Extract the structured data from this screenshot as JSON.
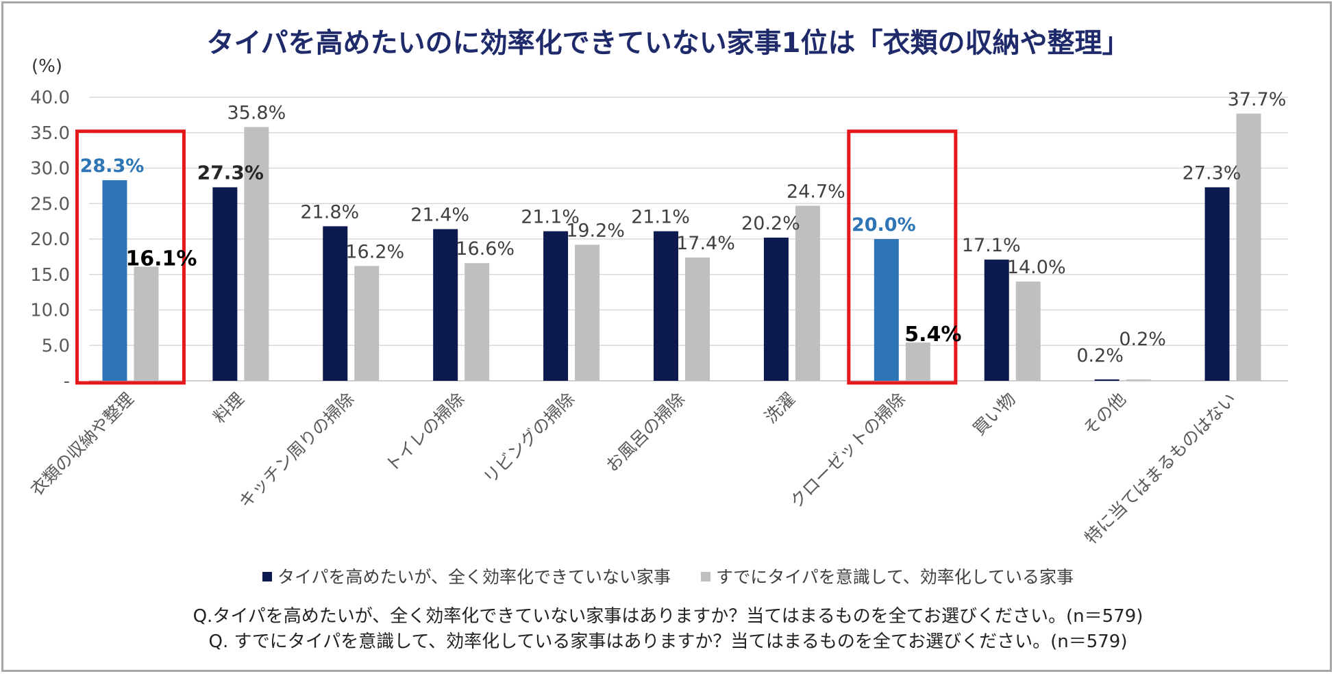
{
  "title": "タイパを高めたいのに効率化できていない家事1位は「衣類の収納や整理」",
  "colors": {
    "series1": "#0c1a4f",
    "series2": "#bfbfbf",
    "highlight_bar": "#2e75b6",
    "highlight_label": "#2e75b6",
    "highlight_box": "#e5181b",
    "grid": "#d9d9d9",
    "axis_text": "#595959"
  },
  "chart_data": {
    "type": "bar",
    "ylabel": "(%)",
    "ylim": [
      0,
      40
    ],
    "yticks": [
      "-",
      "5.0",
      "10.0",
      "15.0",
      "20.0",
      "25.0",
      "30.0",
      "35.0",
      "40.0"
    ],
    "grid": true,
    "legend_position": "bottom",
    "categories": [
      "衣類の収納や整理",
      "料理",
      "キッチン周りの掃除",
      "トイレの掃除",
      "リビングの掃除",
      "お風呂の掃除",
      "洗濯",
      "クローゼットの掃除",
      "買い物",
      "その他",
      "特に当てはまるものはない"
    ],
    "series": [
      {
        "name": "タイパを高めたいが、全く効率化できていない家事",
        "values": [
          28.3,
          27.3,
          21.8,
          21.4,
          21.1,
          21.1,
          20.2,
          20.0,
          17.1,
          0.2,
          27.3
        ],
        "labels": [
          "28.3%",
          "27.3%",
          "21.8%",
          "21.4%",
          "21.1%",
          "21.1%",
          "20.2%",
          "20.0%",
          "17.1%",
          "0.2%",
          "27.3%"
        ]
      },
      {
        "name": "すでにタイパを意識して、効率化している家事",
        "values": [
          16.1,
          35.8,
          16.2,
          16.6,
          19.2,
          17.4,
          24.7,
          5.4,
          14.0,
          0.2,
          37.7
        ],
        "labels": [
          "16.1%",
          "35.8%",
          "16.2%",
          "16.6%",
          "19.2%",
          "17.4%",
          "24.7%",
          "5.4%",
          "14.0%",
          "0.2%",
          "37.7%"
        ]
      }
    ],
    "highlighted_categories": [
      "衣類の収納や整理",
      "クローゼットの掃除"
    ]
  },
  "questions": [
    "Q.タイパを高めたいが、全く効率化できていない家事はありますか？当てはまるものを全てお選びください。(n＝579)",
    "Q. すでにタイパを意識して、効率化している家事はありますか？当てはまるものを全てお選びください。(n＝579)"
  ]
}
